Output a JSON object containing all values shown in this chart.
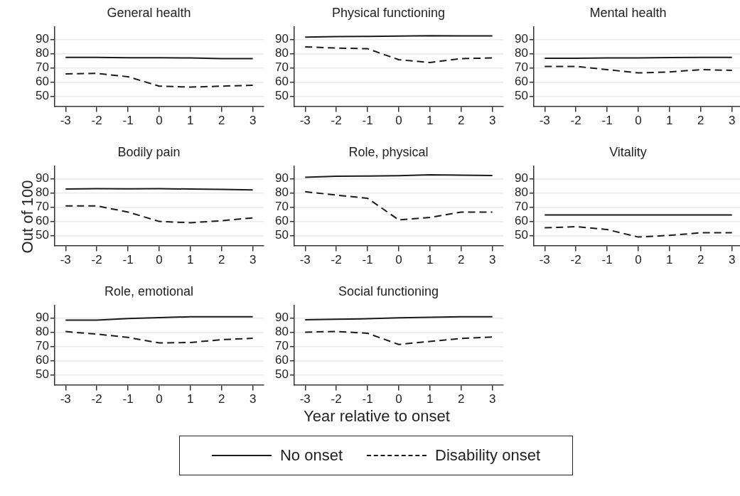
{
  "chart_data": [
    {
      "type": "line",
      "title": "General health",
      "legend": "bottom",
      "x": [
        -3,
        -2,
        -1,
        0,
        1,
        2,
        3
      ],
      "xlim": [
        -3.35,
        3.35
      ],
      "xticks": [
        -3,
        -2,
        -1,
        0,
        1,
        2,
        3
      ],
      "ylim": [
        43,
        99
      ],
      "yticks": [
        50,
        60,
        70,
        80,
        90
      ],
      "grid": "y",
      "marker": "none",
      "series": [
        {
          "name": "No onset",
          "color": "#1a1a1a",
          "line_style": "solid",
          "values": [
            77.4,
            77.4,
            77.2,
            77.2,
            77,
            76.6,
            76.5
          ]
        },
        {
          "name": "Disability onset",
          "color": "#1a1a1a",
          "line_style": "dashed",
          "values": [
            65.8,
            66.2,
            63.8,
            57.2,
            56.5,
            57.2,
            57.8
          ]
        }
      ]
    },
    {
      "type": "line",
      "title": "Physical functioning",
      "x": [
        -3,
        -2,
        -1,
        0,
        1,
        2,
        3
      ],
      "xlim": [
        -3.35,
        3.35
      ],
      "xticks": [
        -3,
        -2,
        -1,
        0,
        1,
        2,
        3
      ],
      "ylim": [
        43,
        99
      ],
      "yticks": [
        50,
        60,
        70,
        80,
        90
      ],
      "grid": "y",
      "marker": "none",
      "series": [
        {
          "color": "#1a1a1a",
          "line_style": "solid",
          "values": [
            91.7,
            92,
            92.2,
            92.4,
            92.7,
            92.5,
            92.5
          ]
        },
        {
          "color": "#1a1a1a",
          "line_style": "dashed",
          "values": [
            84.8,
            84,
            83.5,
            75.8,
            73.8,
            76.6,
            77
          ]
        }
      ]
    },
    {
      "type": "line",
      "title": "Mental health",
      "x": [
        -3,
        -2,
        -1,
        0,
        1,
        2,
        3
      ],
      "xlim": [
        -3.35,
        3.35
      ],
      "xticks": [
        -3,
        -2,
        -1,
        0,
        1,
        2,
        3
      ],
      "ylim": [
        43,
        99
      ],
      "yticks": [
        50,
        60,
        70,
        80,
        90
      ],
      "grid": "y",
      "marker": "none",
      "series": [
        {
          "color": "#1a1a1a",
          "line_style": "solid",
          "values": [
            76.8,
            76.8,
            77,
            77,
            77.3,
            77.4,
            77.4
          ]
        },
        {
          "color": "#1a1a1a",
          "line_style": "dashed",
          "values": [
            71.1,
            71.1,
            68.8,
            66.5,
            67.2,
            68.8,
            68.3
          ]
        }
      ]
    },
    {
      "type": "line",
      "title": "Bodily pain",
      "ylabel": "Out of 100",
      "x": [
        -3,
        -2,
        -1,
        0,
        1,
        2,
        3
      ],
      "xlim": [
        -3.35,
        3.35
      ],
      "xticks": [
        -3,
        -2,
        -1,
        0,
        1,
        2,
        3
      ],
      "ylim": [
        43,
        99
      ],
      "yticks": [
        50,
        60,
        70,
        80,
        90
      ],
      "grid": "y",
      "marker": "none",
      "series": [
        {
          "color": "#1a1a1a",
          "line_style": "solid",
          "values": [
            82.8,
            83,
            82.9,
            83,
            82.8,
            82.6,
            82.2
          ]
        },
        {
          "color": "#1a1a1a",
          "line_style": "dashed",
          "values": [
            70.9,
            70.9,
            66.6,
            60,
            59.1,
            60.5,
            62.5
          ]
        }
      ]
    },
    {
      "type": "line",
      "title": "Role, physical",
      "x": [
        -3,
        -2,
        -1,
        0,
        1,
        2,
        3
      ],
      "xlim": [
        -3.35,
        3.35
      ],
      "xticks": [
        -3,
        -2,
        -1,
        0,
        1,
        2,
        3
      ],
      "ylim": [
        43,
        99
      ],
      "yticks": [
        50,
        60,
        70,
        80,
        90
      ],
      "grid": "y",
      "marker": "none",
      "series": [
        {
          "color": "#1a1a1a",
          "line_style": "solid",
          "values": [
            91.1,
            91.8,
            91.9,
            92.2,
            92.8,
            92.5,
            92.3
          ]
        },
        {
          "color": "#1a1a1a",
          "line_style": "dashed",
          "values": [
            80.9,
            78.5,
            76.3,
            61.1,
            62.8,
            66.6,
            66.6
          ]
        }
      ]
    },
    {
      "type": "line",
      "title": "Vitality",
      "x": [
        -3,
        -2,
        -1,
        0,
        1,
        2,
        3
      ],
      "xlim": [
        -3.35,
        3.35
      ],
      "xticks": [
        -3,
        -2,
        -1,
        0,
        1,
        2,
        3
      ],
      "ylim": [
        43,
        99
      ],
      "yticks": [
        50,
        60,
        70,
        80,
        90
      ],
      "grid": "y",
      "marker": "none",
      "series": [
        {
          "color": "#1a1a1a",
          "line_style": "solid",
          "values": [
            64.6,
            64.6,
            64.6,
            64.6,
            64.6,
            64.6,
            64.6
          ]
        },
        {
          "color": "#1a1a1a",
          "line_style": "dashed",
          "values": [
            55.5,
            56.3,
            54.3,
            49,
            50.2,
            52,
            52
          ]
        }
      ]
    },
    {
      "type": "line",
      "title": "Role, emotional",
      "x": [
        -3,
        -2,
        -1,
        0,
        1,
        2,
        3
      ],
      "xlim": [
        -3.35,
        3.35
      ],
      "xticks": [
        -3,
        -2,
        -1,
        0,
        1,
        2,
        3
      ],
      "ylim": [
        43,
        99
      ],
      "yticks": [
        50,
        60,
        70,
        80,
        90
      ],
      "grid": "y",
      "marker": "none",
      "series": [
        {
          "color": "#1a1a1a",
          "line_style": "solid",
          "values": [
            88.5,
            88.5,
            89.7,
            90.3,
            90.9,
            90.9,
            90.9
          ]
        },
        {
          "color": "#1a1a1a",
          "line_style": "dashed",
          "values": [
            80.5,
            78.7,
            76.4,
            72.5,
            72.8,
            74.8,
            75.8
          ]
        }
      ]
    },
    {
      "type": "line",
      "title": "Social functioning",
      "xlabel": "Year relative to onset",
      "x": [
        -3,
        -2,
        -1,
        0,
        1,
        2,
        3
      ],
      "xlim": [
        -3.35,
        3.35
      ],
      "xticks": [
        -3,
        -2,
        -1,
        0,
        1,
        2,
        3
      ],
      "ylim": [
        43,
        99
      ],
      "yticks": [
        50,
        60,
        70,
        80,
        90
      ],
      "grid": "y",
      "marker": "none",
      "series": [
        {
          "color": "#1a1a1a",
          "line_style": "solid",
          "values": [
            88.8,
            89.2,
            89.5,
            90.2,
            90.5,
            90.9,
            90.9
          ]
        },
        {
          "color": "#1a1a1a",
          "line_style": "dashed",
          "values": [
            80.1,
            80.6,
            79.3,
            71.4,
            73.6,
            75.6,
            76.7
          ]
        }
      ]
    }
  ]
}
